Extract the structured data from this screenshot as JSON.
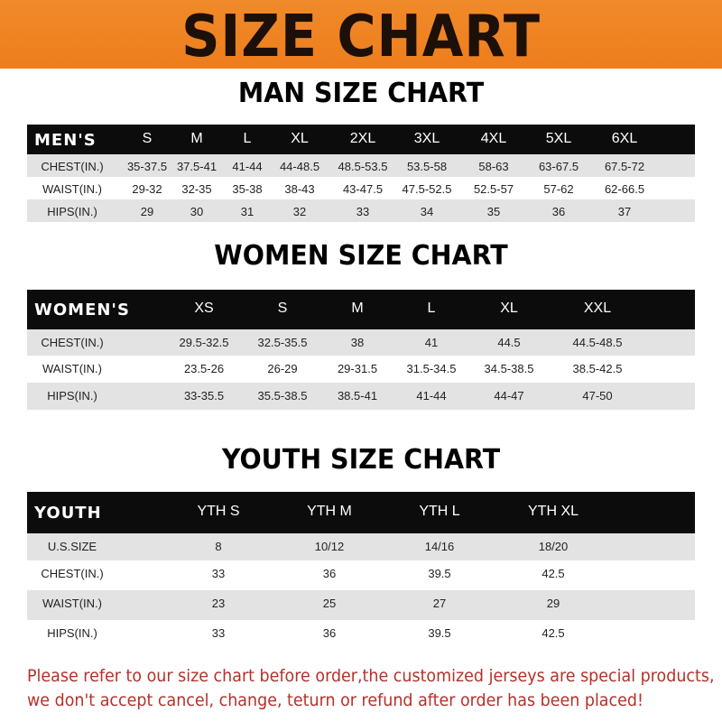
{
  "banner": {
    "title": "SIZE CHART",
    "color": "#ef8322"
  },
  "tables": [
    {
      "title": "MAN SIZE CHART",
      "header": [
        "MEN'S",
        "S",
        "M",
        "L",
        "XL",
        "2XL",
        "3XL",
        "4XL",
        "5XL",
        "6XL"
      ],
      "rows": [
        [
          "CHEST(IN.)",
          "35-37.5",
          "37.5-41",
          "41-44",
          "44-48.5",
          "48.5-53.5",
          "53.5-58",
          "58-63",
          "63-67.5",
          "67.5-72"
        ],
        [
          "WAIST(IN.)",
          "29-32",
          "32-35",
          "35-38",
          "38-43",
          "43-47.5",
          "47.5-52.5",
          "52.5-57",
          "57-62",
          "62-66.5"
        ],
        [
          "HIPS(IN.)",
          "29",
          "30",
          "31",
          "32",
          "33",
          "34",
          "35",
          "36",
          "37"
        ]
      ]
    },
    {
      "title": "WOMEN SIZE CHART",
      "header": [
        "WOMEN'S",
        "XS",
        "S",
        "M",
        "L",
        "XL",
        "XXL"
      ],
      "rows": [
        [
          "CHEST(IN.)",
          "29.5-32.5",
          "32.5-35.5",
          "38",
          "41",
          "44.5",
          "44.5-48.5"
        ],
        [
          "WAIST(IN.)",
          "23.5-26",
          "26-29",
          "29-31.5",
          "31.5-34.5",
          "34.5-38.5",
          "38.5-42.5"
        ],
        [
          "HIPS(IN.)",
          "33-35.5",
          "35.5-38.5",
          "38.5-41",
          "41-44",
          "44-47",
          "47-50"
        ]
      ]
    },
    {
      "title": "YOUTH SIZE CHART",
      "header": [
        "YOUTH",
        "YTH S",
        "YTH M",
        "YTH L",
        "YTH XL"
      ],
      "rows": [
        [
          "U.S.SIZE",
          "8",
          "10/12",
          "14/16",
          "18/20"
        ],
        [
          "CHEST(IN.)",
          "33",
          "36",
          "39.5",
          "42.5"
        ],
        [
          "WAIST(IN.)",
          "23",
          "25",
          "27",
          "29"
        ],
        [
          "HIPS(IN.)",
          "33",
          "36",
          "39.5",
          "42.5"
        ]
      ]
    }
  ],
  "footer": {
    "line1": "Please refer to our size chart before order,the customized jerseys are special products,",
    "line2": "we don't accept cancel, change, teturn or refund after order has been placed!",
    "color": "#b5302a"
  }
}
